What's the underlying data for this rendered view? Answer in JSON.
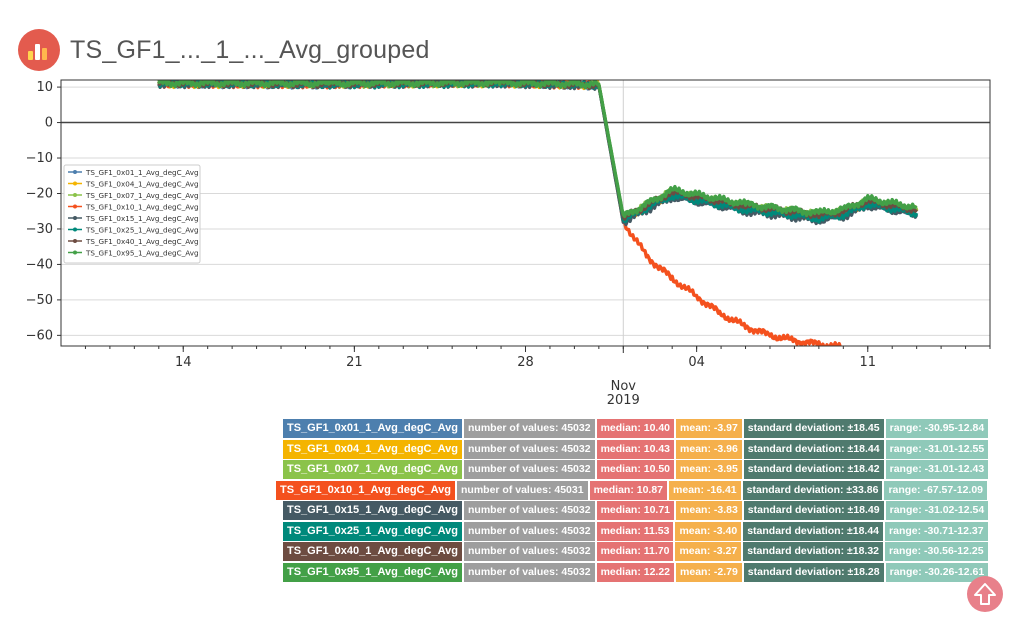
{
  "header": {
    "title": "TS_GF1_..._1_..._Avg_grouped",
    "logo_icon": "bar-chart-logo-icon"
  },
  "chart_data": {
    "type": "line",
    "title": "",
    "xlabel": "",
    "ylabel": "",
    "x_range": [
      "2019-10-09",
      "2019-11-16"
    ],
    "ylim": [
      -63,
      12
    ],
    "yticks": [
      10,
      0,
      -10,
      -20,
      -30,
      -40,
      -50,
      -60
    ],
    "xticks": [
      {
        "date": "2019-10-14",
        "label": "14"
      },
      {
        "date": "2019-10-21",
        "label": "21"
      },
      {
        "date": "2019-10-28",
        "label": "28"
      },
      {
        "date": "2019-11-04",
        "label": "04"
      },
      {
        "date": "2019-11-11",
        "label": "11"
      }
    ],
    "month_label": "Nov",
    "year_label": "2019",
    "grid": true,
    "legend_position": "center-left",
    "zero_line": true,
    "series": [
      {
        "name": "TS_GF1_0x01_1_Avg_degC_Avg",
        "color": "#4d7fae",
        "points": [
          [
            "2019-10-13",
            11.0
          ],
          [
            "2019-10-20",
            10.8
          ],
          [
            "2019-10-27",
            11.2
          ],
          [
            "2019-10-31",
            10.5
          ],
          [
            "2019-11-01",
            -27.0
          ],
          [
            "2019-11-03",
            -20.0
          ],
          [
            "2019-11-06",
            -24.0
          ],
          [
            "2019-11-09",
            -26.5
          ],
          [
            "2019-11-10",
            -25.5
          ],
          [
            "2019-11-11",
            -22.5
          ],
          [
            "2019-11-13",
            -25.0
          ]
        ]
      },
      {
        "name": "TS_GF1_0x04_1_Avg_degC_Avg",
        "color": "#f4b400",
        "points": [
          [
            "2019-10-13",
            11.0
          ],
          [
            "2019-10-20",
            10.9
          ],
          [
            "2019-10-27",
            11.2
          ],
          [
            "2019-10-31",
            10.6
          ],
          [
            "2019-11-01",
            -27.0
          ],
          [
            "2019-11-03",
            -19.8
          ],
          [
            "2019-11-06",
            -23.8
          ],
          [
            "2019-11-09",
            -26.3
          ],
          [
            "2019-11-10",
            -25.3
          ],
          [
            "2019-11-11",
            -22.4
          ],
          [
            "2019-11-13",
            -24.9
          ]
        ]
      },
      {
        "name": "TS_GF1_0x07_1_Avg_degC_Avg",
        "color": "#8bc34a",
        "points": [
          [
            "2019-10-13",
            11.1
          ],
          [
            "2019-10-20",
            11.0
          ],
          [
            "2019-10-27",
            11.3
          ],
          [
            "2019-10-31",
            10.7
          ],
          [
            "2019-11-01",
            -26.8
          ],
          [
            "2019-11-03",
            -19.5
          ],
          [
            "2019-11-06",
            -23.5
          ],
          [
            "2019-11-09",
            -26.0
          ],
          [
            "2019-11-10",
            -25.0
          ],
          [
            "2019-11-11",
            -22.2
          ],
          [
            "2019-11-13",
            -24.7
          ]
        ]
      },
      {
        "name": "TS_GF1_0x10_1_Avg_degC_Avg",
        "color": "#f4511e",
        "points": [
          [
            "2019-10-13",
            11.0
          ],
          [
            "2019-10-20",
            10.9
          ],
          [
            "2019-10-27",
            11.1
          ],
          [
            "2019-10-31",
            10.6
          ],
          [
            "2019-11-01",
            -28.0
          ],
          [
            "2019-11-02",
            -38.0
          ],
          [
            "2019-11-03",
            -44.0
          ],
          [
            "2019-11-04",
            -49.0
          ],
          [
            "2019-11-05",
            -54.0
          ],
          [
            "2019-11-06",
            -57.5
          ],
          [
            "2019-11-07",
            -60.0
          ],
          [
            "2019-11-08",
            -61.5
          ],
          [
            "2019-11-09",
            -62.5
          ],
          [
            "2019-11-10",
            -63.5
          ]
        ]
      },
      {
        "name": "TS_GF1_0x15_1_Avg_degC_Avg",
        "color": "#455a64",
        "points": [
          [
            "2019-10-13",
            11.0
          ],
          [
            "2019-10-20",
            10.8
          ],
          [
            "2019-10-27",
            11.1
          ],
          [
            "2019-10-31",
            10.4
          ],
          [
            "2019-11-01",
            -28.0
          ],
          [
            "2019-11-03",
            -21.0
          ],
          [
            "2019-11-06",
            -25.0
          ],
          [
            "2019-11-09",
            -27.5
          ],
          [
            "2019-11-10",
            -26.5
          ],
          [
            "2019-11-11",
            -23.5
          ],
          [
            "2019-11-13",
            -26.0
          ]
        ]
      },
      {
        "name": "TS_GF1_0x25_1_Avg_degC_Avg",
        "color": "#00897b",
        "points": [
          [
            "2019-10-13",
            11.0
          ],
          [
            "2019-10-20",
            10.8
          ],
          [
            "2019-10-27",
            11.1
          ],
          [
            "2019-10-31",
            10.5
          ],
          [
            "2019-11-01",
            -27.5
          ],
          [
            "2019-11-03",
            -20.5
          ],
          [
            "2019-11-06",
            -24.5
          ],
          [
            "2019-11-09",
            -27.0
          ],
          [
            "2019-11-10",
            -26.0
          ],
          [
            "2019-11-11",
            -23.0
          ],
          [
            "2019-11-13",
            -25.5
          ]
        ]
      },
      {
        "name": "TS_GF1_0x40_1_Avg_degC_Avg",
        "color": "#6d4c41",
        "points": [
          [
            "2019-10-13",
            11.1
          ],
          [
            "2019-10-20",
            10.9
          ],
          [
            "2019-10-27",
            11.2
          ],
          [
            "2019-10-31",
            10.6
          ],
          [
            "2019-11-01",
            -27.0
          ],
          [
            "2019-11-03",
            -19.5
          ],
          [
            "2019-11-06",
            -23.5
          ],
          [
            "2019-11-09",
            -26.0
          ],
          [
            "2019-11-10",
            -25.0
          ],
          [
            "2019-11-11",
            -22.0
          ],
          [
            "2019-11-13",
            -24.5
          ]
        ]
      },
      {
        "name": "TS_GF1_0x95_1_Avg_degC_Avg",
        "color": "#43a047",
        "points": [
          [
            "2019-10-13",
            11.2
          ],
          [
            "2019-10-20",
            11.0
          ],
          [
            "2019-10-27",
            11.3
          ],
          [
            "2019-10-31",
            10.8
          ],
          [
            "2019-11-01",
            -26.5
          ],
          [
            "2019-11-03",
            -19.0
          ],
          [
            "2019-11-06",
            -23.0
          ],
          [
            "2019-11-09",
            -25.5
          ],
          [
            "2019-11-10",
            -24.5
          ],
          [
            "2019-11-11",
            -21.5
          ],
          [
            "2019-11-13",
            -24.0
          ]
        ]
      }
    ]
  },
  "stats": {
    "colors": {
      "count": "#9e9e9e",
      "median": "#e57373",
      "mean": "#f5b04c",
      "std": "#4f7a6e",
      "range": "#8fc9b9"
    },
    "rows": [
      {
        "name": "TS_GF1_0x01_1_Avg_degC_Avg",
        "color": "#4d7fae",
        "count": "number of values: 45032",
        "median": "median: 10.40",
        "mean": "mean: -3.97",
        "std": "standard deviation: ±18.45",
        "range": "range: -30.95-12.84"
      },
      {
        "name": "TS_GF1_0x04_1_Avg_degC_Avg",
        "color": "#f4b400",
        "count": "number of values: 45032",
        "median": "median: 10.43",
        "mean": "mean: -3.96",
        "std": "standard deviation: ±18.44",
        "range": "range: -31.01-12.55"
      },
      {
        "name": "TS_GF1_0x07_1_Avg_degC_Avg",
        "color": "#8bc34a",
        "count": "number of values: 45032",
        "median": "median: 10.50",
        "mean": "mean: -3.95",
        "std": "standard deviation: ±18.42",
        "range": "range: -31.01-12.43"
      },
      {
        "name": "TS_GF1_0x10_1_Avg_degC_Avg",
        "color": "#f4511e",
        "count": "number of values: 45031",
        "median": "median: 10.87",
        "mean": "mean: -16.41",
        "std": "standard deviation: ±33.86",
        "range": "range: -67.57-12.09"
      },
      {
        "name": "TS_GF1_0x15_1_Avg_degC_Avg",
        "color": "#455a64",
        "count": "number of values: 45032",
        "median": "median: 10.71",
        "mean": "mean: -3.83",
        "std": "standard deviation: ±18.49",
        "range": "range: -31.02-12.54"
      },
      {
        "name": "TS_GF1_0x25_1_Avg_degC_Avg",
        "color": "#00897b",
        "count": "number of values: 45032",
        "median": "median: 11.53",
        "mean": "mean: -3.40",
        "std": "standard deviation: ±18.44",
        "range": "range: -30.71-12.37"
      },
      {
        "name": "TS_GF1_0x40_1_Avg_degC_Avg",
        "color": "#6d4c41",
        "count": "number of values: 45032",
        "median": "median: 11.70",
        "mean": "mean: -3.27",
        "std": "standard deviation: ±18.32",
        "range": "range: -30.56-12.25"
      },
      {
        "name": "TS_GF1_0x95_1_Avg_degC_Avg",
        "color": "#43a047",
        "count": "number of values: 45032",
        "median": "median: 12.22",
        "mean": "mean: -2.79",
        "std": "standard deviation: ±18.28",
        "range": "range: -30.26-12.61"
      }
    ]
  },
  "scroll_top_icon": "arrow-up-icon"
}
